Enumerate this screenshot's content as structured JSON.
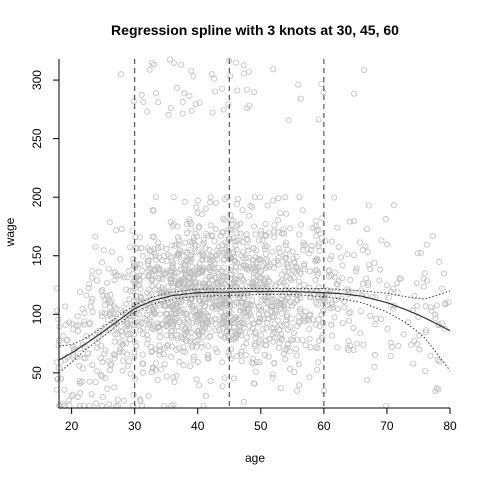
{
  "chart_data": {
    "type": "scatter",
    "title": "Regression spline with 3 knots at 30, 45, 60",
    "xlabel": "age",
    "ylabel": "wage",
    "xlim": [
      18,
      80
    ],
    "ylim": [
      20,
      318
    ],
    "x_ticks": [
      20,
      30,
      40,
      50,
      60,
      70,
      80
    ],
    "y_ticks": [
      50,
      100,
      150,
      200,
      250,
      300
    ],
    "knots": [
      30,
      45,
      60
    ],
    "grid": false,
    "legend": "none",
    "colors": {
      "points": "#bdbdbd",
      "fit": "#333333",
      "knot": "#333333",
      "axis": "#000000"
    },
    "fit": {
      "x": [
        18,
        20,
        22,
        25,
        28,
        30,
        33,
        36,
        40,
        45,
        50,
        55,
        60,
        63,
        66,
        70,
        73,
        76,
        80
      ],
      "y": [
        61,
        67,
        74,
        85,
        97,
        105,
        112,
        116,
        118.5,
        119,
        119.5,
        119.5,
        118.5,
        117.5,
        115.5,
        110,
        104,
        97,
        86
      ]
    },
    "upper_band": {
      "x": [
        18,
        20,
        22,
        25,
        28,
        30,
        33,
        36,
        40,
        45,
        50,
        55,
        60,
        63,
        66,
        70,
        73,
        76,
        80
      ],
      "y": [
        73,
        74,
        79,
        89,
        101,
        108,
        115,
        119,
        121.5,
        122,
        122,
        122,
        122,
        121,
        120,
        118,
        115,
        113,
        120
      ]
    },
    "lower_band": {
      "x": [
        18,
        20,
        22,
        25,
        28,
        30,
        33,
        36,
        40,
        45,
        50,
        55,
        60,
        63,
        66,
        70,
        73,
        76,
        80
      ],
      "y": [
        50,
        59,
        69,
        81,
        94,
        102,
        109,
        113,
        115.5,
        116,
        117,
        117,
        115,
        113,
        110,
        102,
        93,
        80,
        52
      ]
    },
    "points": {
      "note_count": 3000,
      "age_range": [
        18,
        80
      ],
      "main_cluster_wage_range": [
        20,
        200
      ],
      "high_earner_band_wage_range": [
        265,
        318
      ]
    }
  }
}
